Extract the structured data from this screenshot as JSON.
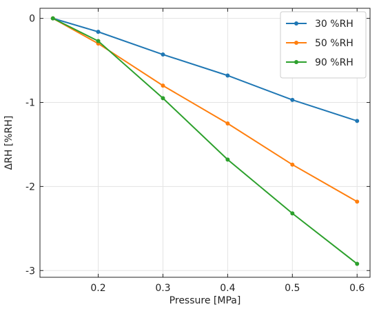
{
  "chart_data": {
    "type": "line",
    "xlabel": "Pressure [MPa]",
    "ylabel": "ΔRH [%RH]",
    "xlim": [
      0.11,
      0.62
    ],
    "ylim": [
      -3.08,
      0.12
    ],
    "xticks": [
      0.2,
      0.3,
      0.4,
      0.5,
      0.6
    ],
    "xtick_labels": [
      "0.2",
      "0.3",
      "0.4",
      "0.5",
      "0.6"
    ],
    "yticks": [
      0,
      -1,
      -2,
      -3
    ],
    "ytick_labels": [
      "0",
      "-1",
      "-2",
      "-3"
    ],
    "grid": true,
    "legend_position": "top-right",
    "x": [
      0.13,
      0.2,
      0.3,
      0.4,
      0.5,
      0.6
    ],
    "series": [
      {
        "name": "30 %RH",
        "color": "#1f77b4",
        "values": [
          0,
          -0.16,
          -0.43,
          -0.68,
          -0.97,
          -1.22
        ]
      },
      {
        "name": "50 %RH",
        "color": "#ff7f0e",
        "values": [
          0,
          -0.3,
          -0.8,
          -1.25,
          -1.74,
          -2.18
        ]
      },
      {
        "name": "90 %RH",
        "color": "#2ca02c",
        "values": [
          0,
          -0.27,
          -0.95,
          -1.68,
          -2.32,
          -2.92
        ]
      }
    ]
  }
}
